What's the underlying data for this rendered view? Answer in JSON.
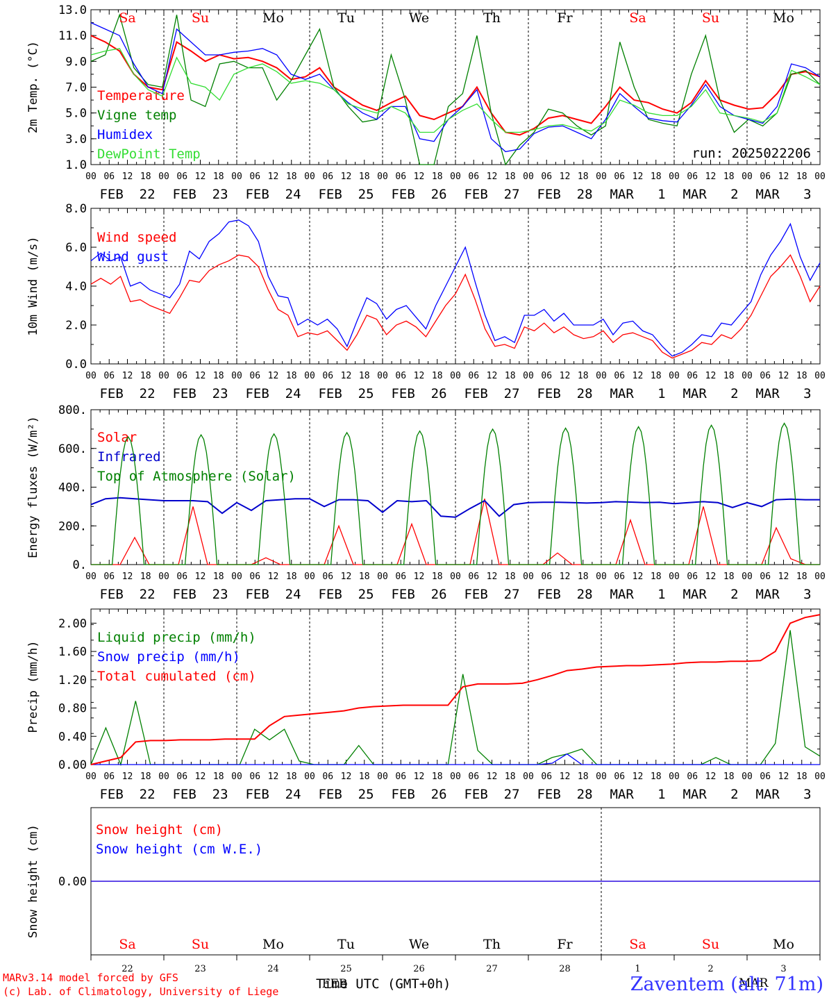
{
  "chart_data": [
    {
      "type": "line",
      "ylabel": "2m Temp. (°C)",
      "ylim": [
        1.0,
        13.0
      ],
      "yticks": [
        "1.0",
        "3.0",
        "5.0",
        "7.0",
        "9.0",
        "11.0",
        "13.0"
      ],
      "annotation": "run: 2025022206",
      "weekday_labels": [
        "Sa",
        "Su",
        "Mo",
        "Tu",
        "We",
        "Th",
        "Fr",
        "Sa",
        "Su",
        "Mo"
      ],
      "series": [
        {
          "name": "Temperature",
          "color": "#ff0000",
          "values": [
            11.0,
            10.5,
            9.8,
            8.0,
            7.0,
            6.8,
            10.5,
            9.8,
            9.0,
            9.5,
            9.2,
            9.3,
            9.0,
            8.5,
            7.6,
            7.8,
            8.5,
            7.0,
            6.3,
            5.6,
            5.2,
            5.8,
            6.3,
            4.8,
            4.5,
            5.0,
            5.5,
            7.0,
            5.0,
            3.5,
            3.3,
            3.8,
            4.6,
            4.8,
            4.5,
            4.2,
            5.5,
            7.0,
            6.0,
            5.8,
            5.3,
            5.0,
            5.8,
            7.5,
            6.0,
            5.6,
            5.3,
            5.4,
            6.5,
            8.0,
            8.2,
            7.8
          ]
        },
        {
          "name": "Vigne temp",
          "color": "#008000",
          "values": [
            9.0,
            9.5,
            12.6,
            8.5,
            7.2,
            7.0,
            12.6,
            6.0,
            5.5,
            8.8,
            9.0,
            8.5,
            8.5,
            6.0,
            7.5,
            9.5,
            11.5,
            7.0,
            5.5,
            4.3,
            4.5,
            9.5,
            6.0,
            1.0,
            1.0,
            5.5,
            6.5,
            11.0,
            5.0,
            1.0,
            2.5,
            3.5,
            5.3,
            5.0,
            4.0,
            3.3,
            4.0,
            10.5,
            7.0,
            4.5,
            4.2,
            4.0,
            8.0,
            11.0,
            6.0,
            3.5,
            4.5,
            4.0,
            5.0,
            8.0,
            8.3,
            7.2
          ]
        },
        {
          "name": "Humidex",
          "color": "#0000ff",
          "values": [
            12.0,
            11.5,
            11.0,
            8.8,
            7.0,
            6.5,
            11.5,
            10.5,
            9.5,
            9.5,
            9.7,
            9.8,
            10.0,
            9.5,
            8.0,
            7.6,
            8.0,
            6.8,
            5.8,
            5.0,
            4.5,
            5.5,
            5.5,
            3.0,
            2.8,
            4.5,
            5.5,
            6.8,
            3.0,
            2.0,
            2.2,
            3.4,
            3.9,
            4.0,
            3.5,
            3.0,
            4.5,
            6.5,
            5.5,
            4.6,
            4.4,
            4.3,
            5.6,
            7.2,
            5.5,
            4.8,
            4.5,
            4.2,
            5.5,
            8.8,
            8.5,
            7.8
          ]
        },
        {
          "name": "DewPoint Temp",
          "color": "#33dd33",
          "values": [
            9.5,
            9.8,
            10.0,
            8.0,
            6.8,
            6.3,
            9.3,
            7.3,
            7.0,
            6.0,
            8.0,
            8.5,
            8.8,
            8.2,
            7.3,
            7.5,
            7.3,
            6.8,
            5.7,
            5.3,
            5.0,
            5.5,
            5.0,
            3.5,
            3.5,
            4.5,
            5.2,
            5.7,
            4.5,
            3.5,
            3.5,
            3.7,
            4.0,
            4.1,
            3.8,
            3.6,
            4.3,
            6.0,
            5.6,
            5.0,
            4.8,
            4.8,
            5.5,
            6.8,
            5.0,
            4.8,
            4.6,
            4.3,
            5.0,
            8.3,
            7.8,
            7.2
          ]
        }
      ]
    },
    {
      "type": "line",
      "ylabel": "10m Wind (m/s)",
      "ylim": [
        0.0,
        8.0
      ],
      "yticks": [
        "0.0",
        "2.0",
        "4.0",
        "6.0",
        "8.0"
      ],
      "reference_line": 5.0,
      "series": [
        {
          "name": "Wind speed",
          "color": "#ff0000",
          "values": [
            4.1,
            4.4,
            4.1,
            4.5,
            3.2,
            3.3,
            3.0,
            2.8,
            2.6,
            3.4,
            4.3,
            4.2,
            4.8,
            5.1,
            5.3,
            5.6,
            5.5,
            5.0,
            3.8,
            2.8,
            2.5,
            1.4,
            1.6,
            1.5,
            1.7,
            1.2,
            0.7,
            1.5,
            2.5,
            2.3,
            1.5,
            2.0,
            2.2,
            1.9,
            1.4,
            2.2,
            3.0,
            3.6,
            4.6,
            3.3,
            1.8,
            0.9,
            1.0,
            0.8,
            1.9,
            1.7,
            2.1,
            1.6,
            1.9,
            1.5,
            1.3,
            1.4,
            1.7,
            1.1,
            1.5,
            1.6,
            1.4,
            1.2,
            0.6,
            0.3,
            0.5,
            0.7,
            1.1,
            1.0,
            1.5,
            1.3,
            1.8,
            2.5,
            3.5,
            4.5,
            5.0,
            5.6,
            4.5,
            3.2,
            4.0
          ]
        },
        {
          "name": "Wind gust",
          "color": "#0000ff",
          "values": [
            5.3,
            5.7,
            5.3,
            5.5,
            4.0,
            4.2,
            3.8,
            3.6,
            3.4,
            4.1,
            5.8,
            5.4,
            6.3,
            6.7,
            7.3,
            7.4,
            7.1,
            6.3,
            4.5,
            3.5,
            3.4,
            2.0,
            2.3,
            2.0,
            2.3,
            1.8,
            0.9,
            2.2,
            3.4,
            3.1,
            2.3,
            2.8,
            3.0,
            2.4,
            1.8,
            3.0,
            4.0,
            5.0,
            6.0,
            4.2,
            2.5,
            1.2,
            1.4,
            1.1,
            2.5,
            2.5,
            2.8,
            2.2,
            2.6,
            2.0,
            2.0,
            2.0,
            2.3,
            1.5,
            2.1,
            2.2,
            1.7,
            1.5,
            0.9,
            0.4,
            0.6,
            1.0,
            1.5,
            1.4,
            2.1,
            2.0,
            2.6,
            3.2,
            4.6,
            5.6,
            6.3,
            7.2,
            5.5,
            4.3,
            5.2
          ]
        }
      ]
    },
    {
      "type": "line",
      "ylabel": "Energy fluxes (W/m²)",
      "ylim": [
        0,
        800
      ],
      "yticks": [
        "0.",
        "200.",
        "400.",
        "600.",
        "800."
      ],
      "series": [
        {
          "name": "Solar",
          "color": "#ff0000",
          "values": [
            0,
            0,
            0,
            140,
            0,
            0,
            0,
            300,
            0,
            0,
            0,
            0,
            35,
            0,
            0,
            0,
            0,
            200,
            0,
            0,
            0,
            0,
            210,
            0,
            0,
            0,
            0,
            340,
            0,
            0,
            0,
            0,
            60,
            0,
            0,
            0,
            0,
            230,
            0,
            0,
            0,
            0,
            300,
            0,
            0,
            0,
            0,
            190,
            30,
            0,
            0
          ]
        },
        {
          "name": "Infrared",
          "color": "#0000cc",
          "values": [
            310,
            340,
            345,
            340,
            335,
            330,
            330,
            330,
            325,
            265,
            320,
            280,
            330,
            335,
            340,
            340,
            300,
            335,
            335,
            330,
            270,
            330,
            325,
            330,
            250,
            245,
            290,
            330,
            250,
            310,
            320,
            322,
            322,
            320,
            318,
            320,
            325,
            323,
            320,
            322,
            315,
            320,
            325,
            320,
            295,
            320,
            300,
            335,
            338,
            335,
            335
          ]
        },
        {
          "name": "Top of Atmosphere (Solar)",
          "color": "#008000",
          "values": [
            660,
            670,
            675,
            682,
            690,
            700,
            705,
            712,
            720,
            730
          ]
        }
      ]
    },
    {
      "type": "line",
      "ylabel": "Precip (mm/h)",
      "ylim": [
        0.0,
        2.2
      ],
      "yticks": [
        "0.00",
        "0.40",
        "0.80",
        "1.20",
        "1.60",
        "2.00"
      ],
      "series": [
        {
          "name": "Liquid precip (mm/h)",
          "color": "#008000",
          "values": [
            0,
            0.52,
            0,
            0.9,
            0,
            0,
            0,
            0,
            0,
            0,
            0,
            0.5,
            0.35,
            0.5,
            0.05,
            0,
            0,
            0,
            0.27,
            0,
            0,
            0,
            0,
            0,
            0,
            1.28,
            0.2,
            0,
            0,
            0,
            0,
            0.1,
            0.15,
            0.22,
            0,
            0,
            0,
            0,
            0,
            0,
            0,
            0,
            0.1,
            0,
            0,
            0,
            0.3,
            1.9,
            0.25,
            0.12
          ]
        },
        {
          "name": "Snow precip (mm/h)",
          "color": "#0000ff",
          "values": [
            0,
            0,
            0,
            0,
            0,
            0,
            0,
            0,
            0,
            0,
            0,
            0,
            0,
            0,
            0,
            0,
            0,
            0,
            0,
            0,
            0,
            0,
            0,
            0,
            0,
            0,
            0,
            0,
            0,
            0,
            0,
            0.02,
            0.15,
            0,
            0,
            0,
            0,
            0,
            0,
            0,
            0,
            0,
            0,
            0,
            0,
            0,
            0,
            0,
            0,
            0
          ]
        },
        {
          "name": "Total cumulated (cm)",
          "color": "#ff0000",
          "values": [
            0.0,
            0.05,
            0.1,
            0.32,
            0.34,
            0.34,
            0.35,
            0.35,
            0.35,
            0.36,
            0.36,
            0.36,
            0.55,
            0.68,
            0.7,
            0.72,
            0.74,
            0.76,
            0.8,
            0.82,
            0.83,
            0.84,
            0.84,
            0.84,
            0.84,
            1.1,
            1.14,
            1.14,
            1.14,
            1.15,
            1.2,
            1.26,
            1.33,
            1.35,
            1.38,
            1.39,
            1.4,
            1.4,
            1.41,
            1.42,
            1.44,
            1.45,
            1.45,
            1.46,
            1.46,
            1.47,
            1.6,
            2.0,
            2.08,
            2.12
          ]
        }
      ]
    },
    {
      "type": "line",
      "ylabel": "Snow height (cm)",
      "ylim": [
        -1,
        1
      ],
      "yticks": [
        "0.00"
      ],
      "series": [
        {
          "name": "Snow height (cm)",
          "color": "#ff0000",
          "values": [
            0,
            0
          ]
        },
        {
          "name": "Snow height (cm W.E.)",
          "color": "#0000ff",
          "values": [
            0,
            0
          ]
        }
      ]
    }
  ],
  "x_axis": {
    "hour_labels": [
      "00",
      "06",
      "12",
      "18"
    ],
    "final_hour_label": "00",
    "date_labels": [
      "FEB  22",
      "FEB  23",
      "FEB  24",
      "FEB  25",
      "FEB  26",
      "FEB  27",
      "FEB  28",
      "MAR   1",
      "MAR   2",
      "MAR   3"
    ],
    "bottom_days": [
      "22",
      "23",
      "24",
      "25",
      "26",
      "27",
      "28",
      "1",
      "2",
      "3"
    ],
    "bottom_weekdays": [
      "Sa",
      "Su",
      "Mo",
      "Tu",
      "We",
      "Th",
      "Fr",
      "Sa",
      "Su",
      "Mo"
    ],
    "weekday_colors": [
      "#ff0000",
      "#ff0000",
      "#000000",
      "#000000",
      "#000000",
      "#000000",
      "#000000",
      "#ff0000",
      "#ff0000",
      "#000000"
    ]
  },
  "footer": {
    "credit_line1": "MARv3.14 model forced by GFS",
    "credit_line2": "(c) Lab. of Climatology, University of Liege",
    "xtitle": "Time UTC (GMT+0h)",
    "overlay_text": "FEB",
    "station": "Zaventem (alt. 71m)",
    "month_right": "MAR"
  }
}
